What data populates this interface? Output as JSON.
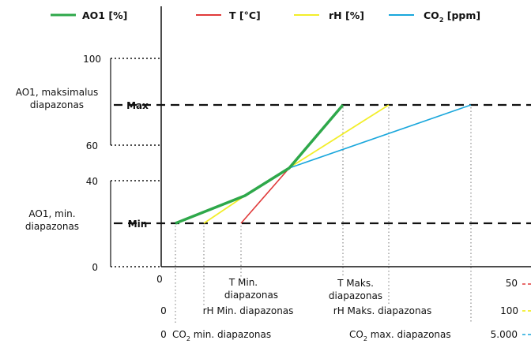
{
  "legend": {
    "ao1": "AO1 [%]",
    "t": "T [°C]",
    "rh": "rH [%]",
    "co2_main": "CO",
    "co2_sub": "2",
    "co2_unit": " [ppm]"
  },
  "y_axis": {
    "tick_100": "100",
    "tick_60": "60",
    "tick_40": "40",
    "tick_0": "0",
    "max_label": "Max",
    "min_label": "Min",
    "max_range_line1": "AO1, maksimalus",
    "max_range_line2": "diapazonas",
    "min_range_line1": "AO1, min.",
    "min_range_line2": "diapazonas"
  },
  "x_axis": {
    "origin": "0",
    "t_min_line1": "T Min.",
    "t_min_line2": "diapazonas",
    "t_max_line1": "T Maks.",
    "t_max_line2": "diapazonas",
    "t_end": "50",
    "rh_zero": "0",
    "rh_min": "rH Min. diapazonas",
    "rh_max": "rH Maks. diapazonas",
    "rh_end": "100",
    "co2_zero": "0",
    "co2_min_pre": "CO",
    "co2_min_sub": "2",
    "co2_min_post": " min. diapazonas",
    "co2_max_pre": "CO",
    "co2_max_sub": "2",
    "co2_max_post": " max. diapazonas",
    "co2_end": "5.000"
  },
  "colors": {
    "ao1": "#2ea84a",
    "t": "#e03a3a",
    "rh": "#f2ee2a",
    "co2": "#1aa7dc",
    "axis": "#111111"
  }
}
